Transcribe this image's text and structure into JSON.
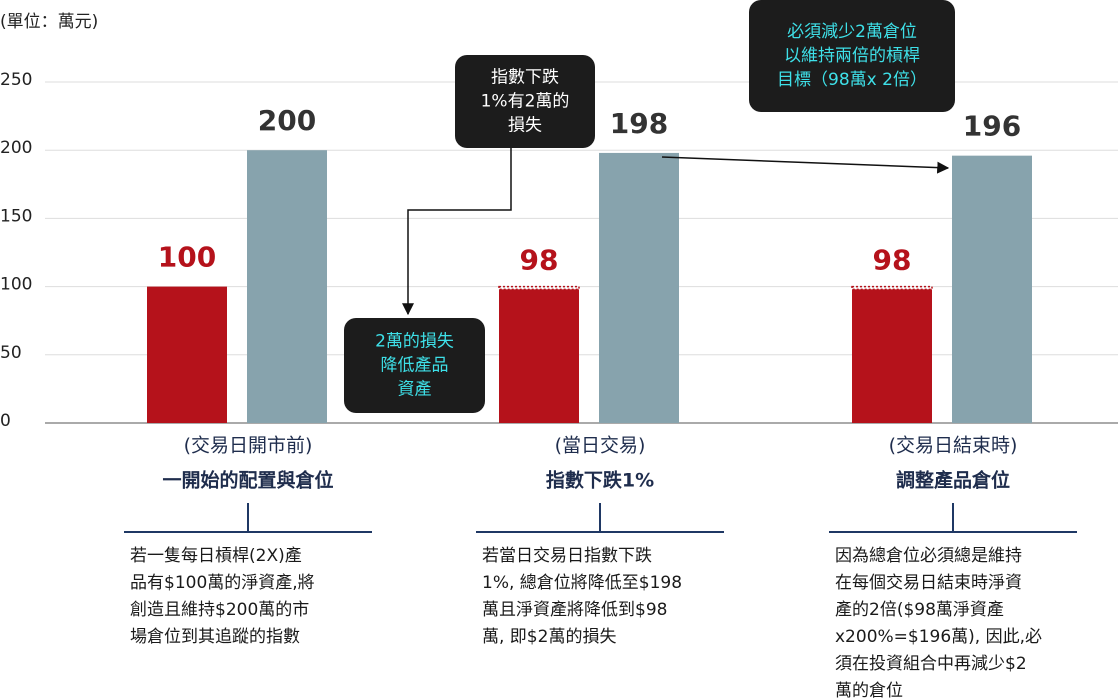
{
  "chart_data": {
    "type": "bar",
    "unit_label": "(單位：萬元)",
    "categories": [
      [
        "(交易日開市前)",
        "一開始的配置與倉位"
      ],
      [
        "(當日交易)",
        "指數下跌1%"
      ],
      [
        "(交易日結束時)",
        "調整產品倉位"
      ]
    ],
    "series": [
      {
        "color": "#b5121b",
        "label_color": "#b5121b",
        "values": [
          100,
          98,
          98
        ],
        "previous_values": [
          null,
          100,
          100
        ]
      },
      {
        "color": "#87a3ad",
        "label_color": "#333333",
        "values": [
          200,
          198,
          196
        ]
      }
    ],
    "ylim": [
      0,
      250
    ],
    "yticks": [
      0,
      50,
      100,
      150,
      200,
      250
    ],
    "grid": true,
    "callouts": [
      {
        "lines": [
          "指數下跌",
          "1%有2萬的",
          "損失"
        ],
        "text_color": "#ffffff"
      },
      {
        "lines": [
          "2萬的損失",
          "降低產品",
          "資產"
        ],
        "text_color": "#3ee0e8"
      },
      {
        "lines": [
          "必須減少2萬倉位",
          "以維持兩倍的槓桿",
          "目標（98萬x 2倍）"
        ],
        "text_color": "#3ee0e8"
      }
    ],
    "notes": [
      [
        "若一隻每日槓桿(2X)產",
        "品有$100萬的淨資產,將",
        "創造且維持$200萬的市",
        "場倉位到其追蹤的指數"
      ],
      [
        "若當日交易日指數下跌",
        "1%, 總倉位將降低至$198",
        "萬且淨資產將降低到$98",
        "萬, 即$2萬的損失"
      ],
      [
        "因為總倉位必須總是維持",
        "在每個交易日結束時淨資",
        "產的2倍($98萬淨資產",
        "x200%=$196萬), 因此,必",
        "須在投資組合中再減少$2",
        "萬的倉位"
      ]
    ]
  }
}
